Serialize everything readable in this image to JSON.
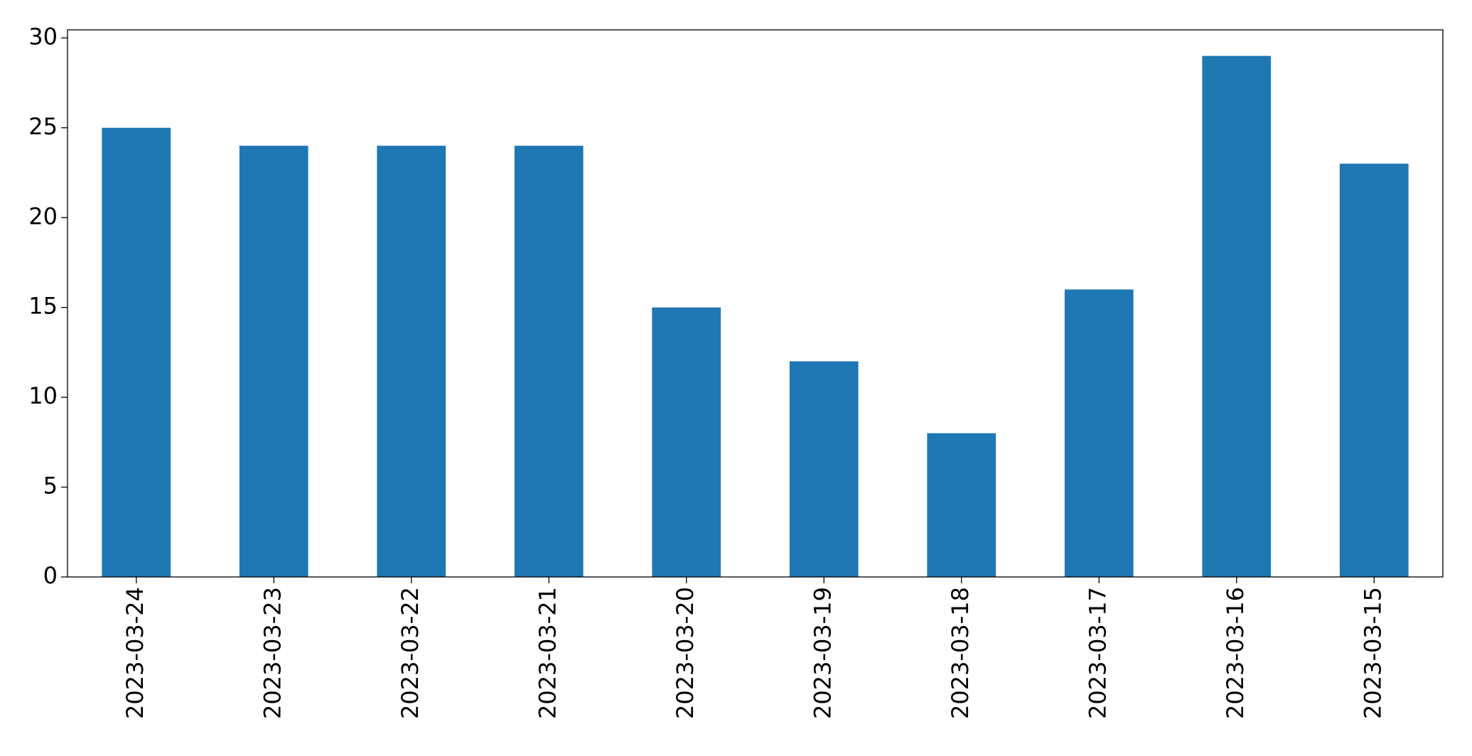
{
  "chart_data": {
    "type": "bar",
    "categories": [
      "2023-03-24",
      "2023-03-23",
      "2023-03-22",
      "2023-03-21",
      "2023-03-20",
      "2023-03-19",
      "2023-03-18",
      "2023-03-17",
      "2023-03-16",
      "2023-03-15"
    ],
    "values": [
      25,
      24,
      24,
      24,
      15,
      12,
      8,
      16,
      29,
      23
    ],
    "color": "#1f77b4",
    "ylim": [
      0,
      30.45
    ],
    "yticks": [
      0,
      5,
      10,
      15,
      20,
      25,
      30
    ],
    "grid": false
  }
}
